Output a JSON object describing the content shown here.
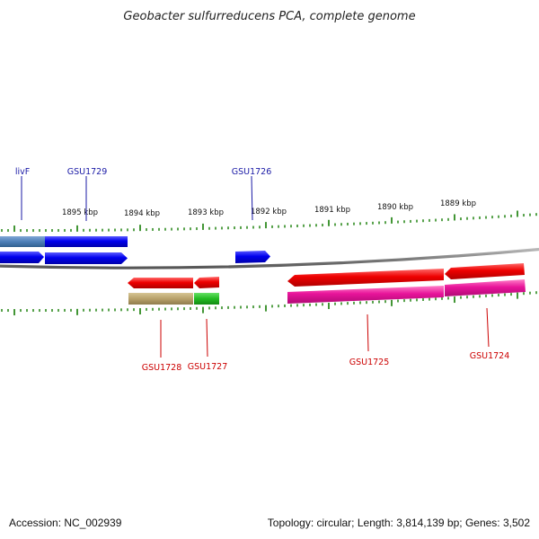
{
  "title": "Geobacter sulfurreducens PCA, complete genome",
  "footer": {
    "accession": "Accession: NC_002939",
    "topology": "Topology: circular; Length: 3,814,139 bp; Genes: 3,502"
  },
  "scale_labels": [
    "1895 kbp",
    "1894 kbp",
    "1893 kbp",
    "1892 kbp",
    "1891 kbp",
    "1890 kbp",
    "1889 kbp"
  ],
  "gene_labels_top": [
    "livF",
    "GSU1729",
    "GSU1726"
  ],
  "gene_labels_bottom": [
    "GSU1728",
    "GSU1727",
    "GSU1725",
    "GSU1724"
  ],
  "colors": {
    "forward_gene": "#0000ee",
    "reverse_gene": "#ee0000",
    "top_label": "#1a1aa6",
    "bottom_label": "#cc0000",
    "tick": "#2e8b1f",
    "backbone": "#808080",
    "magenta_track": "#e8149a",
    "olive_track": "#b8a26a",
    "green_track": "#22bb22",
    "steelblue_track": "#4d7fb8"
  }
}
